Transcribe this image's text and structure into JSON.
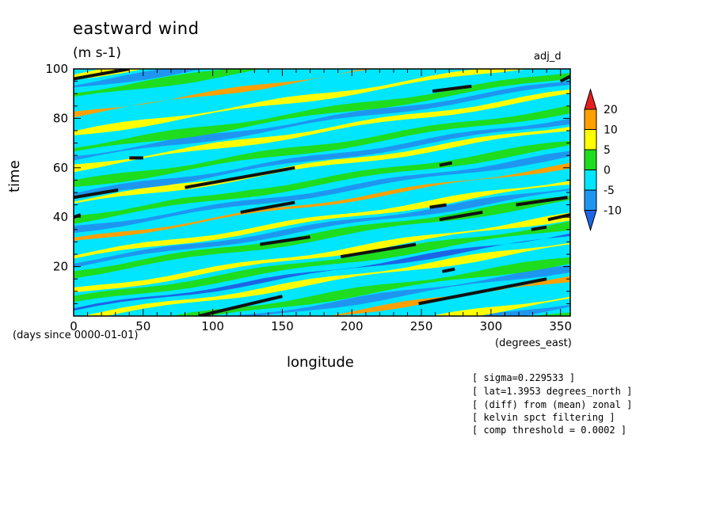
{
  "chart_data": {
    "type": "heatmap",
    "title": "eastward wind",
    "units": "(m s-1)",
    "corner_label": "adj_d",
    "xlabel": "longitude",
    "ylabel": "time",
    "x_units_label": "(degrees_east)",
    "y_units_label": "(days since 0000-01-01)",
    "xlim": [
      0,
      357
    ],
    "ylim": [
      0,
      100
    ],
    "x_ticks": [
      0,
      50,
      100,
      150,
      200,
      250,
      300,
      350
    ],
    "y_ticks": [
      20,
      40,
      60,
      80,
      100
    ],
    "colorbar": {
      "levels": [
        -10,
        -5,
        0,
        5,
        10,
        20
      ],
      "colors": [
        "#1e64e6",
        "#1e96f0",
        "#00e6ff",
        "#1edc1e",
        "#ffff00",
        "#ffa000",
        "#e61e1e"
      ]
    },
    "wave_bands": [
      {
        "offset": 2,
        "value": 7
      },
      {
        "offset": 6,
        "value": -3
      },
      {
        "offset": 9,
        "value": 2
      },
      {
        "offset": 13,
        "value": -6
      },
      {
        "offset": 16,
        "value": 6
      },
      {
        "offset": 20,
        "value": -1
      },
      {
        "offset": 24,
        "value": 12
      },
      {
        "offset": 28,
        "value": -7
      },
      {
        "offset": 31,
        "value": 3
      },
      {
        "offset": 35,
        "value": -2
      },
      {
        "offset": 38,
        "value": 8
      },
      {
        "offset": 42,
        "value": -11
      },
      {
        "offset": 45,
        "value": 1
      },
      {
        "offset": 49,
        "value": 6
      },
      {
        "offset": 53,
        "value": -4
      },
      {
        "offset": 56,
        "value": 2
      },
      {
        "offset": 60,
        "value": -8
      },
      {
        "offset": 63,
        "value": 7
      },
      {
        "offset": 67,
        "value": -1
      },
      {
        "offset": 70,
        "value": 11
      },
      {
        "offset": 74,
        "value": -6
      },
      {
        "offset": 78,
        "value": 3
      },
      {
        "offset": 81,
        "value": -2
      },
      {
        "offset": 85,
        "value": 8
      },
      {
        "offset": 88,
        "value": -7
      },
      {
        "offset": 92,
        "value": 4
      },
      {
        "offset": 96,
        "value": -3
      },
      {
        "offset": 99,
        "value": 9
      },
      {
        "offset": 103,
        "value": -9
      },
      {
        "offset": 106,
        "value": 2
      },
      {
        "offset": 110,
        "value": -4
      },
      {
        "offset": 113,
        "value": 7
      },
      {
        "offset": 117,
        "value": -2
      },
      {
        "offset": 121,
        "value": 12
      },
      {
        "offset": 124,
        "value": -5
      },
      {
        "offset": 128,
        "value": 3
      },
      {
        "offset": 132,
        "value": -8
      },
      {
        "offset": 136,
        "value": 6
      },
      {
        "offset": 139,
        "value": -1
      }
    ],
    "threshold_segments": [
      {
        "x1": 0,
        "y1": 96,
        "x2": 40,
        "y2": 100
      },
      {
        "x1": 0,
        "y1": 48,
        "x2": 32,
        "y2": 51
      },
      {
        "x1": 80,
        "y1": 52,
        "x2": 159,
        "y2": 60
      },
      {
        "x1": 120,
        "y1": 42,
        "x2": 159,
        "y2": 46
      },
      {
        "x1": 134,
        "y1": 29,
        "x2": 170,
        "y2": 32
      },
      {
        "x1": 192,
        "y1": 24,
        "x2": 246,
        "y2": 29
      },
      {
        "x1": 258,
        "y1": 91,
        "x2": 286,
        "y2": 93
      },
      {
        "x1": 256,
        "y1": 44,
        "x2": 268,
        "y2": 45
      },
      {
        "x1": 263,
        "y1": 61,
        "x2": 272,
        "y2": 62
      },
      {
        "x1": 263,
        "y1": 39,
        "x2": 294,
        "y2": 42
      },
      {
        "x1": 265,
        "y1": 18,
        "x2": 274,
        "y2": 19
      },
      {
        "x1": 248,
        "y1": 5,
        "x2": 340,
        "y2": 15
      },
      {
        "x1": 318,
        "y1": 45,
        "x2": 355,
        "y2": 48
      },
      {
        "x1": 329,
        "y1": 35,
        "x2": 340,
        "y2": 36
      },
      {
        "x1": 341,
        "y1": 39,
        "x2": 357,
        "y2": 41
      },
      {
        "x1": 350,
        "y1": 95,
        "x2": 357,
        "y2": 97
      },
      {
        "x1": 90,
        "y1": 0,
        "x2": 150,
        "y2": 8
      },
      {
        "x1": 40,
        "y1": 64,
        "x2": 50,
        "y2": 64
      },
      {
        "x1": 0,
        "y1": 40,
        "x2": 5,
        "y2": 41
      }
    ]
  },
  "notes": [
    "[ sigma=0.229533 ]",
    "[ lat=1.3953 degrees_north ]",
    "[ (diff) from (mean) zonal ]",
    "[ kelvin spct filtering ]",
    "[ comp threshold = 0.0002 ]"
  ]
}
